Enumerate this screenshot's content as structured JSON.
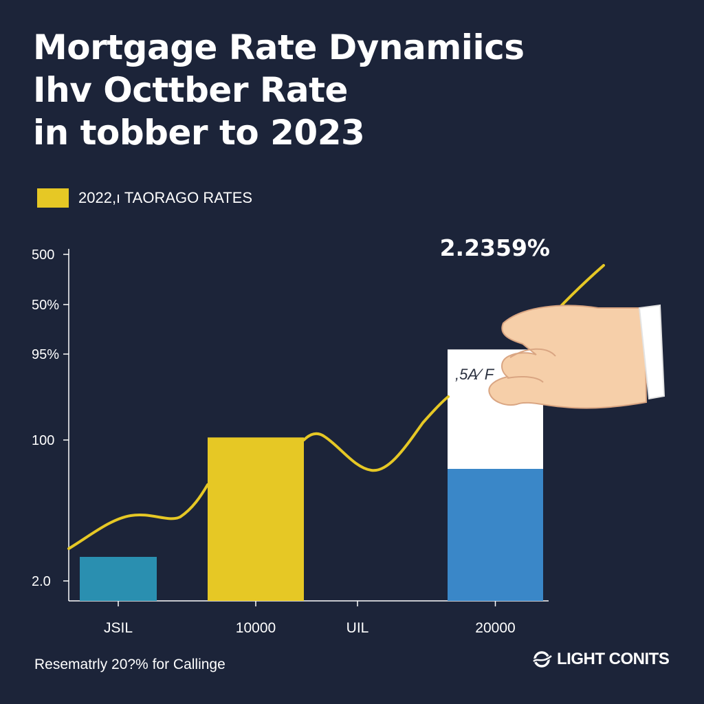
{
  "title_lines": [
    "Mortgage Rate Dynamiics",
    "Ihv Octtber Rate",
    "in tobber to 2023"
  ],
  "legend": {
    "label": "2022,ı TAORAGO RATES",
    "color": "#e6c825"
  },
  "chart_data": {
    "type": "bar",
    "categories": [
      "JSIL",
      "10000",
      "UIL",
      "20000"
    ],
    "y_tick_labels": [
      "500",
      "50%",
      "95%",
      "100",
      "2.0"
    ],
    "bars": [
      {
        "category": "JSIL",
        "value": 0.35,
        "color": "#2a8fb0"
      },
      {
        "category": "10000",
        "value": 1.3,
        "color": "#e6c825"
      },
      {
        "category": "20000",
        "value": 1.05,
        "upper_value": 2.0,
        "color": "#3a87c8",
        "upper_color": "#ffffff"
      }
    ],
    "trend_line": {
      "color": "#e6c825"
    },
    "annotation_value": "2.2359%",
    "bar_label": ",5A⁄ F",
    "ylim": [
      0,
      2.8
    ]
  },
  "footer_note": "Resematrly 20?% for Callinge",
  "brand": "LIGHT CONITS"
}
